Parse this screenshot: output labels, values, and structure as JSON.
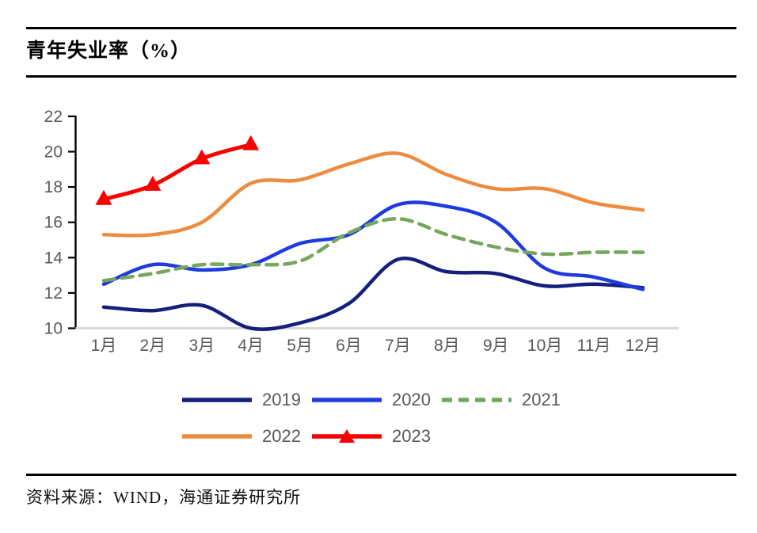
{
  "header": {
    "title": "青年失业率（%）"
  },
  "footer": {
    "source": "资料来源：WIND，海通证券研究所"
  },
  "colors": {
    "navy_2019": "#151F7D",
    "blue_2020": "#1F3BE0",
    "green_2021": "#74A75C",
    "orange_2022": "#ED8B3F",
    "red_2023": "#FA0000",
    "axis_label": "#595959",
    "baseline": "#D9D9D9",
    "axis_line": "#000000"
  },
  "chart_data": {
    "type": "line",
    "title": "青年失业率（%）",
    "xlabel": "",
    "ylabel": "",
    "ylim": [
      10,
      22
    ],
    "yticks": [
      10,
      12,
      14,
      16,
      18,
      20,
      22
    ],
    "grid": false,
    "legend_position": "bottom",
    "categories": [
      "1月",
      "2月",
      "3月",
      "4月",
      "5月",
      "6月",
      "7月",
      "8月",
      "9月",
      "10月",
      "11月",
      "12月"
    ],
    "series": [
      {
        "name": "2019",
        "color": "#151F7D",
        "style": "solid",
        "marker": "none",
        "values": [
          11.2,
          11.0,
          11.3,
          10.0,
          10.3,
          11.4,
          13.9,
          13.2,
          13.1,
          12.4,
          12.5,
          12.3
        ]
      },
      {
        "name": "2020",
        "color": "#1F3BE0",
        "style": "solid",
        "marker": "none",
        "values": [
          12.5,
          13.6,
          13.3,
          13.6,
          14.8,
          15.3,
          17.0,
          16.9,
          16.0,
          13.4,
          12.9,
          12.2
        ]
      },
      {
        "name": "2021",
        "color": "#74A75C",
        "style": "dashed",
        "marker": "none",
        "values": [
          12.7,
          13.1,
          13.6,
          13.6,
          13.8,
          15.4,
          16.2,
          15.3,
          14.6,
          14.2,
          14.3,
          14.3
        ]
      },
      {
        "name": "2022",
        "color": "#ED8B3F",
        "style": "solid",
        "marker": "none",
        "values": [
          15.3,
          15.3,
          16.0,
          18.2,
          18.4,
          19.3,
          19.9,
          18.7,
          17.9,
          17.9,
          17.1,
          16.7
        ]
      },
      {
        "name": "2023",
        "color": "#FA0000",
        "style": "solid",
        "marker": "triangle",
        "values": [
          17.3,
          18.1,
          19.6,
          20.4
        ]
      }
    ]
  }
}
